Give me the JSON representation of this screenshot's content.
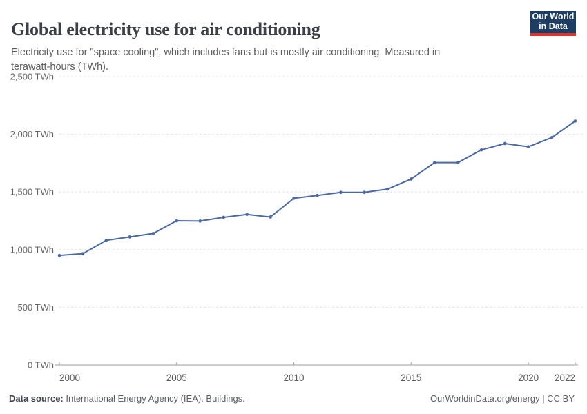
{
  "header": {
    "title": "Global electricity use for air conditioning",
    "subtitle": "Electricity use for \"space cooling\", which includes fans but is mostly air conditioning. Measured in terawatt-hours (TWh).",
    "logo": {
      "line1": "Our World",
      "line2": "in Data",
      "bg_color": "#1d3d63",
      "accent_color": "#d8352f"
    }
  },
  "chart_data": {
    "type": "line",
    "title": "Global electricity use for air conditioning",
    "unit": "TWh",
    "x": [
      2000,
      2001,
      2002,
      2003,
      2004,
      2005,
      2006,
      2007,
      2008,
      2009,
      2010,
      2011,
      2012,
      2013,
      2014,
      2015,
      2016,
      2017,
      2018,
      2019,
      2020,
      2021,
      2022
    ],
    "values": [
      950,
      965,
      1080,
      1110,
      1140,
      1250,
      1248,
      1280,
      1305,
      1283,
      1445,
      1470,
      1497,
      1497,
      1525,
      1612,
      1755,
      1755,
      1865,
      1920,
      1892,
      1972,
      2115
    ],
    "xlim": [
      2000,
      2022
    ],
    "ylim": [
      0,
      2500
    ],
    "xtick_values": [
      2000,
      2005,
      2010,
      2015,
      2020,
      2022
    ],
    "xtick_labels": [
      "2000",
      "2005",
      "2010",
      "2015",
      "2020",
      "2022"
    ],
    "ytick_values": [
      0,
      500,
      1000,
      1500,
      2000,
      2500
    ],
    "ytick_labels": [
      "0 TWh",
      "500 TWh",
      "1,000 TWh",
      "1,500 TWh",
      "2,000 TWh",
      "2,500 TWh"
    ],
    "grid": "horizontal-dashed",
    "legend": "none",
    "marker": "dot",
    "line_color": "#4a69a3",
    "grid_color": "#e2e2e2",
    "axis_color": "#9e9e9e",
    "tick_label_color": "#666666"
  },
  "footer": {
    "source_label": "Data source:",
    "source_value": " International Energy Agency (IEA). Buildings.",
    "credit": "OurWorldinData.org/energy | CC BY"
  }
}
